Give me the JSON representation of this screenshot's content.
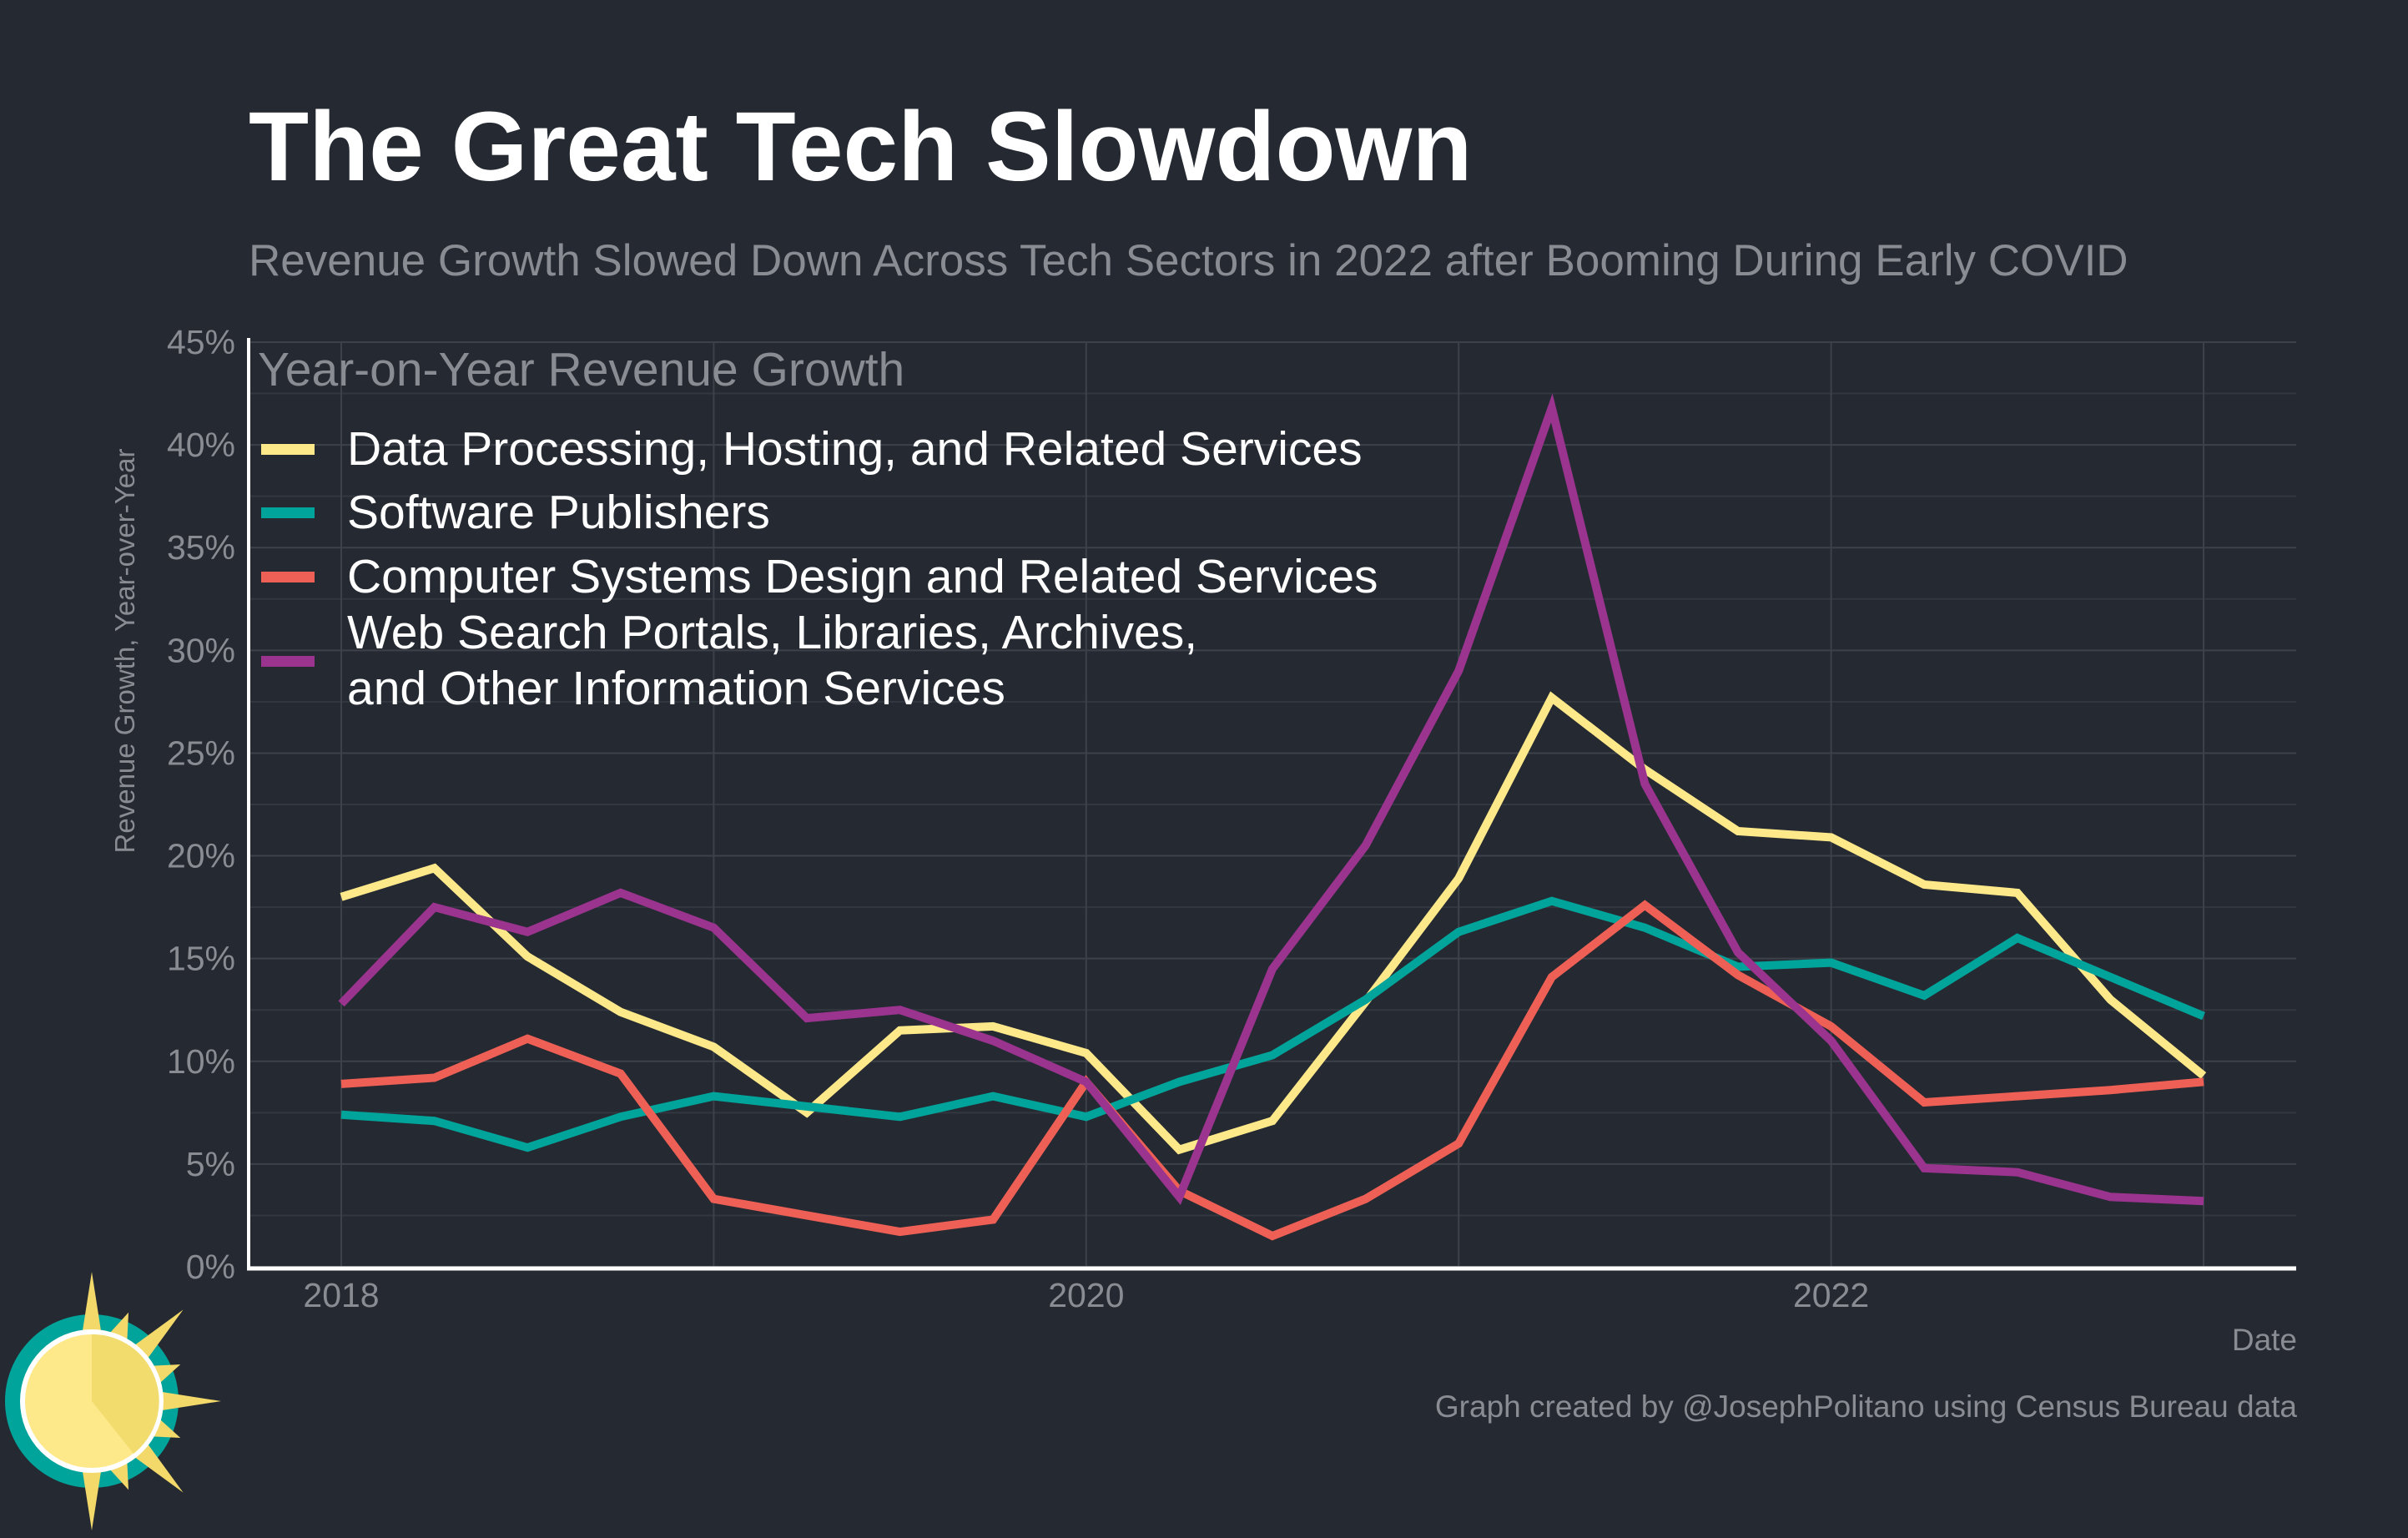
{
  "header": {
    "title": "The Great Tech Slowdown",
    "subtitle": "Revenue Growth Slowed Down Across Tech Sectors in 2022 after Booming During Early COVID"
  },
  "footer": {
    "credit": "Graph created by @JosephPolitano using Census Bureau data",
    "logo_icon": "sun-logo-icon"
  },
  "chart_data": {
    "type": "line",
    "title": "The Great Tech Slowdown",
    "subtitle": "Revenue Growth Slowed Down Across Tech Sectors in 2022 after Booming During Early COVID",
    "xlabel": "Date",
    "ylabel": "Revenue Growth, Year-over-Year",
    "legend_title": "Year-on-Year Revenue Growth",
    "legend_position": "top-left",
    "grid": true,
    "x": [
      "2018-01",
      "2018-04",
      "2018-07",
      "2018-10",
      "2019-01",
      "2019-04",
      "2019-07",
      "2019-10",
      "2020-01",
      "2020-04",
      "2020-07",
      "2020-10",
      "2021-01",
      "2021-04",
      "2021-07",
      "2021-10",
      "2022-01",
      "2022-04",
      "2022-07",
      "2022-10",
      "2023-01"
    ],
    "x_ticks": [
      "2018",
      "2020",
      "2022"
    ],
    "ylim": [
      0,
      45
    ],
    "y_ticks": [
      "0%",
      "5%",
      "10%",
      "15%",
      "20%",
      "25%",
      "30%",
      "35%",
      "40%",
      "45%"
    ],
    "series": [
      {
        "name": "Data Processing, Hosting, and Related Services",
        "color": "#fde98a",
        "values": [
          18.0,
          19.4,
          15.1,
          12.4,
          10.7,
          7.5,
          11.5,
          11.7,
          10.4,
          5.7,
          7.1,
          12.9,
          18.9,
          27.7,
          24.2,
          21.2,
          20.9,
          18.6,
          18.2,
          13.0,
          9.3
        ]
      },
      {
        "name": "Software Publishers",
        "color": "#00a49a",
        "values": [
          7.4,
          7.1,
          5.8,
          7.3,
          8.3,
          7.8,
          7.3,
          8.3,
          7.3,
          9.0,
          10.3,
          13.0,
          16.3,
          17.8,
          16.5,
          14.6,
          14.8,
          13.2,
          16.0,
          14.1,
          12.2
        ]
      },
      {
        "name": "Computer Systems Design and Related Services",
        "color": "#ee6055",
        "values": [
          8.9,
          9.2,
          11.1,
          9.4,
          3.3,
          2.5,
          1.7,
          2.3,
          9.0,
          3.7,
          1.5,
          3.3,
          6.0,
          14.1,
          17.6,
          14.2,
          11.7,
          8.0,
          8.3,
          8.6,
          9.0
        ]
      },
      {
        "name": "Web Search Portals, Libraries, Archives,\nand Other Information Services",
        "name_line1": "Web Search Portals, Libraries, Archives,",
        "name_line2": "and Other Information Services",
        "color": "#9a348e",
        "values": [
          12.8,
          17.5,
          16.3,
          18.2,
          16.5,
          12.1,
          12.5,
          11.0,
          9.0,
          3.4,
          14.5,
          20.5,
          29.0,
          41.8,
          23.5,
          15.3,
          11.0,
          4.8,
          4.6,
          3.4,
          3.2
        ]
      }
    ]
  }
}
